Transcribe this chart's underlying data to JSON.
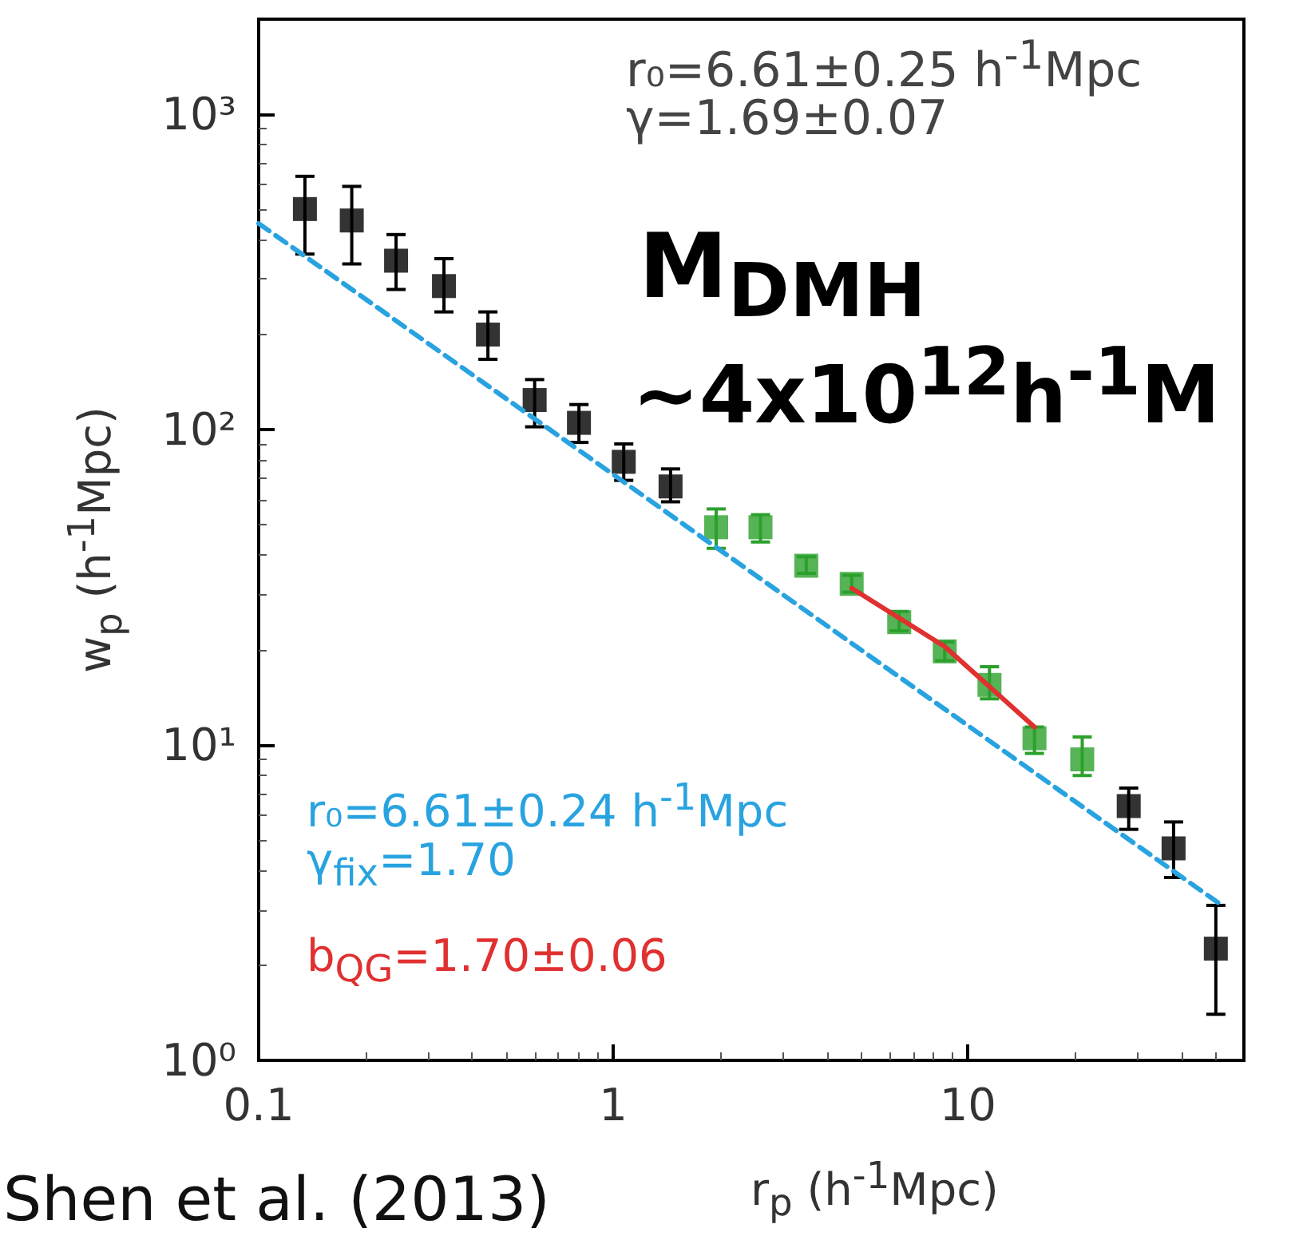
{
  "chart_data": {
    "type": "scatter",
    "xlabel": "r$_{p}$ (h$^{-1}$Mpc)",
    "ylabel": "w$_{p}$ (h$^{-1}$Mpc)",
    "log": "xy",
    "xlim": [
      0.1,
      60
    ],
    "ylim": [
      1,
      2000
    ],
    "xticks": [
      0.1,
      1,
      10
    ],
    "yticks": [
      {
        "value": 1,
        "label": "10⁰"
      },
      {
        "value": 10,
        "label": "10¹"
      },
      {
        "value": 100,
        "label": "10²"
      },
      {
        "value": 1000,
        "label": "10³"
      }
    ],
    "marker": "square",
    "series": [
      {
        "color": "#000000",
        "x": [
          0.135,
          0.183,
          0.244,
          0.333,
          0.443,
          0.6,
          0.8,
          1.07,
          1.45,
          28.4,
          38,
          50
        ],
        "values": [
          500,
          460,
          343,
          285,
          200,
          124,
          105,
          79,
          66,
          6.4,
          4.7,
          2.26
        ],
        "errors": [
          [
            360,
            635
          ],
          [
            335,
            590
          ],
          [
            278,
            415
          ],
          [
            236,
            348
          ],
          [
            167,
            236
          ],
          [
            102,
            144
          ],
          [
            91,
            120
          ],
          [
            69,
            90
          ],
          [
            59,
            75
          ],
          [
            5.4,
            7.3
          ],
          [
            3.8,
            5.7
          ],
          [
            1.4,
            3.1
          ]
        ]
      },
      {
        "color": "#2ca02c",
        "x": [
          1.95,
          2.6,
          3.5,
          4.7,
          6.4,
          8.6,
          11.5,
          15.4,
          21
        ],
        "values": [
          49,
          49,
          37,
          32.4,
          24.5,
          19.8,
          15.5,
          10.5,
          9.0
        ],
        "errors": [
          [
            42,
            56
          ],
          [
            44,
            53.7
          ],
          [
            35,
            39.5
          ],
          [
            30.5,
            34.5
          ],
          [
            23,
            26.5
          ],
          [
            18.5,
            21.2
          ],
          [
            14,
            17.7
          ],
          [
            9.4,
            11.4
          ],
          [
            8.0,
            10.6
          ]
        ]
      },
      {
        "type": "line",
        "color": "#29a3e0",
        "marker": "none",
        "line_style": "dashed",
        "x": [
          0.1,
          52
        ],
        "values": [
          450,
          3.1
        ]
      },
      {
        "type": "line",
        "color": "#e03030",
        "marker": "none",
        "line_style": "solid",
        "x": [
          4.7,
          8.6,
          15.4
        ],
        "values": [
          31.4,
          20.5,
          11.4
        ]
      }
    ],
    "annotations": [
      "r₀=6.61±0.25 h$^{-1}$Mpc",
      "γ=1.69±0.07",
      "M$_{DMH}$",
      "~4x10$^{12}$h$^{-1}$M",
      "r₀=6.61±0.24 h$^{-1}$Mpc",
      "γ$_{fix}$=1.70",
      "b$_{QG}$=1.70±0.06",
      "Shen et al. (2013)"
    ]
  }
}
